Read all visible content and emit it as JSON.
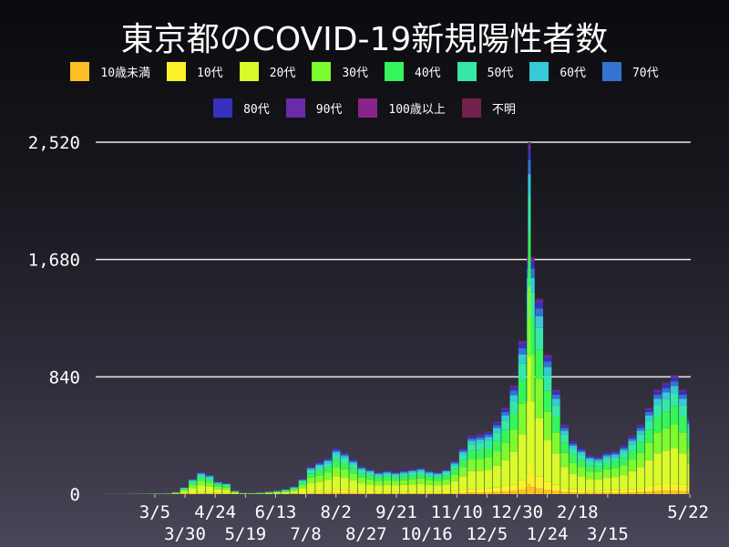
{
  "title": "東京都のCOVID-19新規陽性者数",
  "chart_data": {
    "type": "bar",
    "stacked": true,
    "title": "東京都のCOVID-19新規陽性者数",
    "xlabel": "",
    "ylabel": "",
    "ylim": [
      0,
      2520
    ],
    "yticks": [
      "0",
      "840",
      "1,680",
      "2,520"
    ],
    "ytick_values": [
      0,
      840,
      1680,
      2520
    ],
    "grid": "horizontal",
    "legend_position": "top",
    "date_range": [
      "2020-01-16",
      "2021-05-22"
    ],
    "xticks": [
      "3/5",
      "3/30",
      "4/24",
      "5/19",
      "6/13",
      "7/8",
      "8/2",
      "8/27",
      "9/21",
      "10/16",
      "11/10",
      "12/5",
      "12/30",
      "1/24",
      "2/18",
      "3/15",
      "5/22"
    ],
    "week_start_dates": [
      "1/16",
      "1/23",
      "1/30",
      "2/6",
      "2/13",
      "2/20",
      "2/27",
      "3/5",
      "3/12",
      "3/19",
      "3/26",
      "4/2",
      "4/9",
      "4/16",
      "4/23",
      "4/30",
      "5/7",
      "5/14",
      "5/21",
      "5/28",
      "6/4",
      "6/11",
      "6/18",
      "6/25",
      "7/2",
      "7/9",
      "7/16",
      "7/23",
      "7/30",
      "8/6",
      "8/13",
      "8/20",
      "8/27",
      "9/3",
      "9/10",
      "9/17",
      "9/24",
      "10/1",
      "10/8",
      "10/15",
      "10/22",
      "10/29",
      "11/5",
      "11/12",
      "11/19",
      "11/26",
      "12/3",
      "12/10",
      "12/17",
      "12/24",
      "12/31",
      "1/7",
      "1/14",
      "1/21",
      "1/28",
      "2/4",
      "2/11",
      "2/18",
      "2/25",
      "3/4",
      "3/11",
      "3/18",
      "3/25",
      "4/1",
      "4/8",
      "4/15",
      "4/22",
      "4/29",
      "5/6",
      "5/13",
      "5/20"
    ],
    "daily_cases_weekly_level": [
      0,
      1,
      1,
      1,
      3,
      3,
      4,
      5,
      6,
      15,
      50,
      110,
      160,
      140,
      90,
      80,
      25,
      10,
      8,
      12,
      18,
      25,
      35,
      55,
      110,
      200,
      230,
      260,
      330,
      300,
      250,
      200,
      180,
      160,
      170,
      160,
      170,
      180,
      190,
      170,
      160,
      180,
      240,
      330,
      420,
      430,
      450,
      520,
      620,
      780,
      1100,
      1700,
      1400,
      1000,
      750,
      500,
      380,
      330,
      280,
      270,
      300,
      310,
      350,
      420,
      500,
      620,
      750,
      800,
      850,
      750,
      550
    ],
    "peak_daily": 2520,
    "series": [
      {
        "name": "10歳未満",
        "color": "#fbbf24",
        "share": 0.03
      },
      {
        "name": "10代",
        "color": "#fdf22a",
        "share": 0.06
      },
      {
        "name": "20代",
        "color": "#d9fb2a",
        "share": 0.3
      },
      {
        "name": "30代",
        "color": "#7cfb2f",
        "share": 0.2
      },
      {
        "name": "40代",
        "color": "#36f55a",
        "share": 0.15
      },
      {
        "name": "50代",
        "color": "#36e8a8",
        "share": 0.11
      },
      {
        "name": "60代",
        "color": "#36c9d8",
        "share": 0.06
      },
      {
        "name": "70代",
        "color": "#3473cf",
        "share": 0.04
      },
      {
        "name": "80代",
        "color": "#3631bd",
        "share": 0.03
      },
      {
        "name": "90代",
        "color": "#6b2aa8",
        "share": 0.012
      },
      {
        "name": "100歳以上",
        "color": "#8a2488",
        "share": 0.002
      },
      {
        "name": "不明",
        "color": "#74204d",
        "share": 0.006
      }
    ]
  }
}
